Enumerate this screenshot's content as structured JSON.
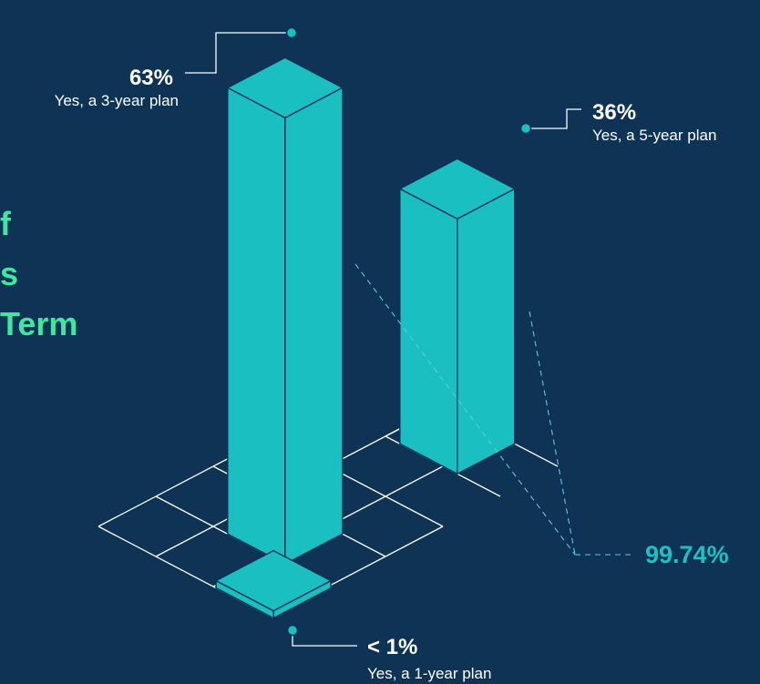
{
  "heading": "f\ns\nTerm",
  "chart_data": {
    "type": "bar",
    "categories": [
      "Yes, a 3-year plan",
      "Yes, a 5-year plan",
      "Yes, a 1-year plan"
    ],
    "series": [
      {
        "values": [
          63,
          36,
          0.74
        ]
      }
    ],
    "value_labels": [
      "63%",
      "36%",
      "< 1%"
    ],
    "total_label": "99.74%",
    "bar_color": "#1ABFC2",
    "grid_color": "#FFFFFF",
    "background_color": "#0E3354",
    "accent_color": "#41E6A0",
    "style": "isometric-3d"
  }
}
